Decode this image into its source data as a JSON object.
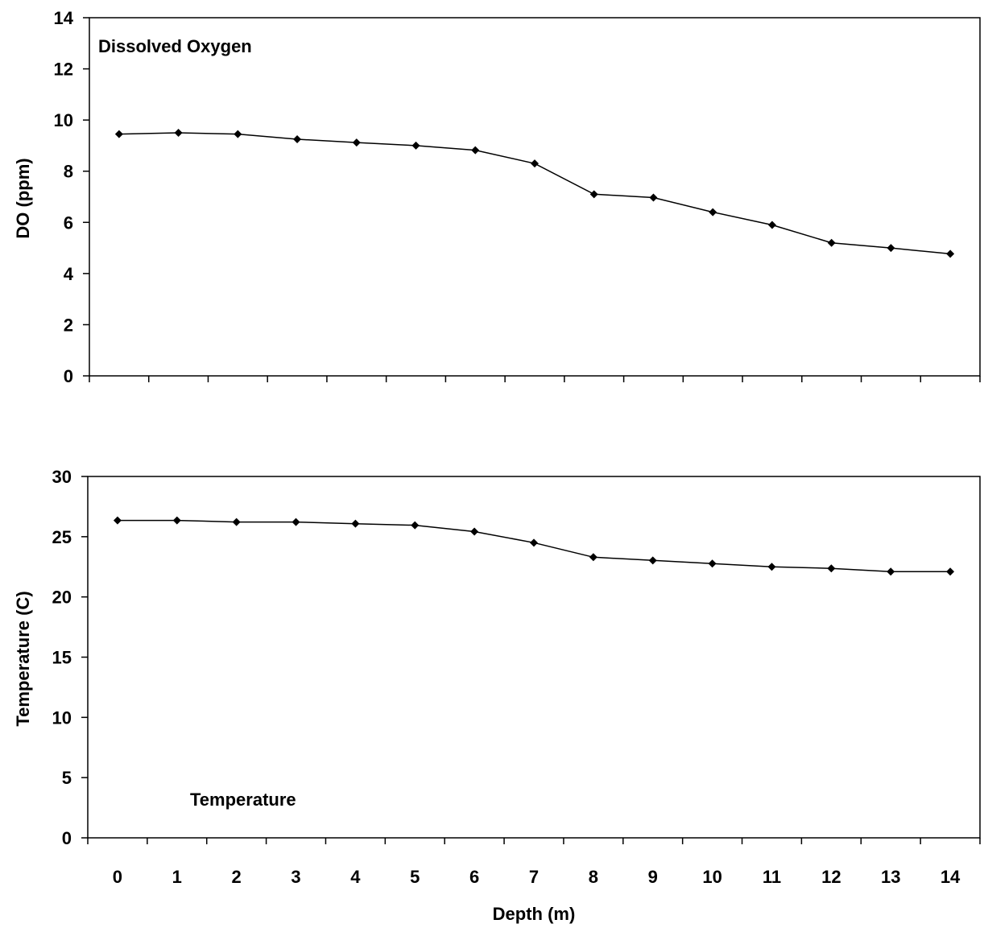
{
  "chart_data": [
    {
      "type": "line",
      "title": "",
      "annotation": "Dissolved Oxygen",
      "xlabel": "",
      "ylabel": "DO (ppm)",
      "ylim": [
        0,
        14
      ],
      "yticks": [
        0,
        2,
        4,
        6,
        8,
        10,
        12,
        14
      ],
      "xlim": [
        -0.5,
        14.5
      ],
      "x": [
        0,
        1,
        2,
        3,
        4,
        5,
        6,
        7,
        8,
        9,
        10,
        11,
        12,
        13,
        14
      ],
      "x_tick_labels_shown": false,
      "grid": false,
      "marker": "diamond",
      "color": "#000000",
      "series": [
        {
          "values": [
            9.45,
            9.5,
            9.45,
            9.25,
            9.12,
            9.0,
            8.82,
            8.3,
            7.1,
            6.97,
            6.4,
            5.9,
            5.2,
            5.0,
            4.77
          ]
        }
      ]
    },
    {
      "type": "line",
      "title": "",
      "annotation": "Temperature",
      "xlabel": "Depth (m)",
      "ylabel": "Temperature (C)",
      "ylim": [
        0,
        30
      ],
      "yticks": [
        0,
        5,
        10,
        15,
        20,
        25,
        30
      ],
      "xlim": [
        -0.5,
        14.5
      ],
      "x": [
        0,
        1,
        2,
        3,
        4,
        5,
        6,
        7,
        8,
        9,
        10,
        11,
        12,
        13,
        14
      ],
      "x_tick_labels_shown": true,
      "grid": false,
      "marker": "diamond",
      "color": "#000000",
      "series": [
        {
          "values": [
            26.35,
            26.35,
            26.22,
            26.22,
            26.08,
            25.95,
            25.42,
            24.5,
            23.3,
            23.03,
            22.77,
            22.5,
            22.37,
            22.1,
            22.1
          ]
        }
      ]
    }
  ]
}
